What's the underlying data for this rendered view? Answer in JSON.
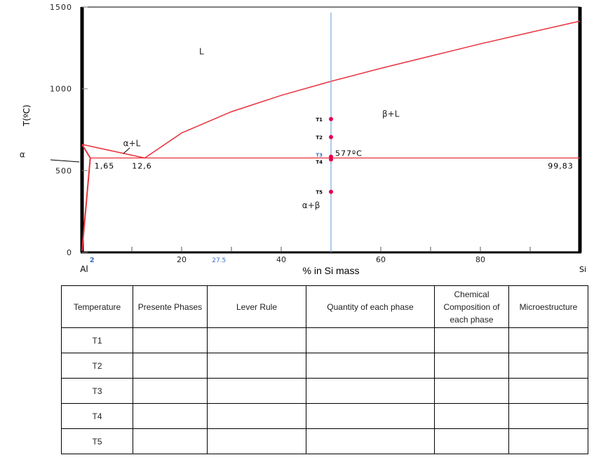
{
  "chart_data": {
    "type": "phase-diagram",
    "ylabel": "T(ºC)",
    "xlabel": "% in Si mass",
    "xlim": [
      0,
      100
    ],
    "ylim": [
      0,
      1500
    ],
    "x_ticks": [
      {
        "v": 20,
        "label": "20"
      },
      {
        "v": 40,
        "label": "40"
      },
      {
        "v": 60,
        "label": "60"
      },
      {
        "v": 80,
        "label": "80"
      }
    ],
    "x_minor_ticks": [
      10,
      30,
      50,
      70,
      90
    ],
    "y_ticks": [
      {
        "v": 0,
        "label": "0"
      },
      {
        "v": 500,
        "label": "500"
      },
      {
        "v": 1000,
        "label": "1000"
      },
      {
        "v": 1500,
        "label": "1500"
      }
    ],
    "x_end_labels": {
      "left": "Al",
      "right": "Si"
    },
    "blue_marks": [
      {
        "v": 2,
        "label": "2"
      },
      {
        "v": 27.5,
        "label": "27.5"
      }
    ],
    "eutectic_temp": 577,
    "eutectic_label": "577ºC",
    "composition_labels": [
      {
        "v": 1.65,
        "label": "1,65"
      },
      {
        "v": 12.6,
        "label": "12,6"
      },
      {
        "v": 99.83,
        "label": "99,83"
      }
    ],
    "al_melting": 660,
    "liquidus_si": [
      [
        12.6,
        577
      ],
      [
        20,
        730
      ],
      [
        30,
        860
      ],
      [
        40,
        960
      ],
      [
        50,
        1046
      ],
      [
        60,
        1125
      ],
      [
        70,
        1200
      ],
      [
        80,
        1275
      ],
      [
        90,
        1345
      ],
      [
        100,
        1414
      ]
    ],
    "liquidus_al": [
      [
        0,
        660
      ],
      [
        12.6,
        577
      ]
    ],
    "solidus_al": [
      [
        0,
        660
      ],
      [
        1.65,
        577
      ]
    ],
    "solvus_al": [
      [
        1.65,
        577
      ],
      [
        0,
        10
      ]
    ],
    "regions": [
      {
        "label": "L",
        "x": 24,
        "y": 1210
      },
      {
        "label": "β+L",
        "x": 62,
        "y": 830
      },
      {
        "label": "α+L",
        "x": 10,
        "y": 650
      },
      {
        "label": "α+β",
        "x": 46,
        "y": 270
      },
      {
        "label": "α",
        "x": -12,
        "y": 580
      }
    ],
    "vertical_line_x": 50,
    "points": [
      {
        "label": "T1",
        "T": 815
      },
      {
        "label": "T2",
        "T": 705
      },
      {
        "label": "T3",
        "T": 585
      },
      {
        "label": "T4",
        "T": 568
      },
      {
        "label": "T5",
        "T": 370
      }
    ],
    "colors": {
      "phase_lines": "#e8323c",
      "vertical": "#7aa6dd",
      "points": "#e8004e",
      "blue_label": "#3b6fc4"
    }
  },
  "table": {
    "headers": [
      "Temperature",
      "Presente Phases",
      "Lever Rule",
      "Quantity of each phase",
      "Chemical Composition of each phase",
      "Microestructure"
    ],
    "rows": [
      "T1",
      "T2",
      "T3",
      "T4",
      "T5"
    ]
  }
}
